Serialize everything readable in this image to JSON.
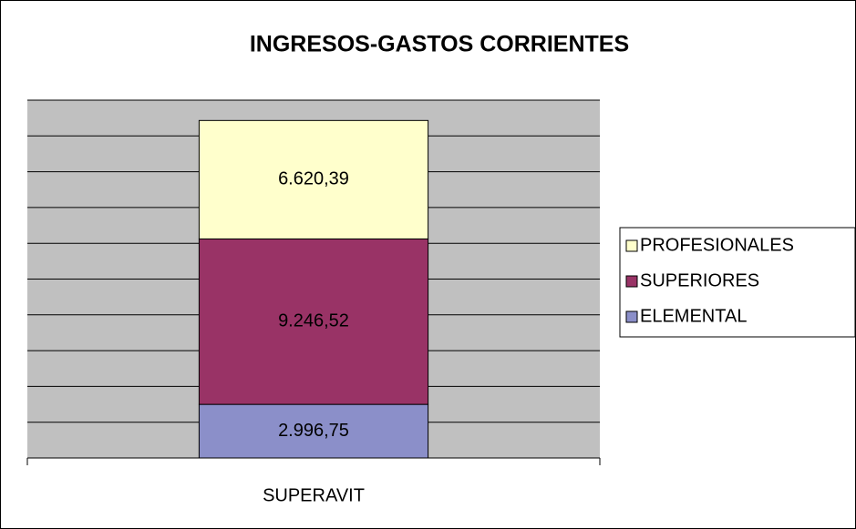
{
  "chart_data": {
    "type": "stacked_bar",
    "title": "INGRESOS-GASTOS CORRIENTES",
    "categories": [
      "SUPERAVIT"
    ],
    "series": [
      {
        "name": "ELEMENTAL",
        "color": "#8b8fc9",
        "values": [
          2996.75
        ],
        "value_labels": [
          "2.996,75"
        ]
      },
      {
        "name": "SUPERIORES",
        "color": "#993366",
        "values": [
          9246.52
        ],
        "value_labels": [
          "9.246,52"
        ]
      },
      {
        "name": "PROFESIONALES",
        "color": "#ffffcc",
        "values": [
          6620.39
        ],
        "value_labels": [
          "6.620,39"
        ]
      }
    ],
    "ylim": [
      0,
      20000
    ],
    "yticks": [
      0,
      2000,
      4000,
      6000,
      8000,
      10000,
      12000,
      14000,
      16000,
      18000,
      20000
    ],
    "grid": true,
    "legend": "right",
    "plot_background": "#c0c0c0"
  }
}
